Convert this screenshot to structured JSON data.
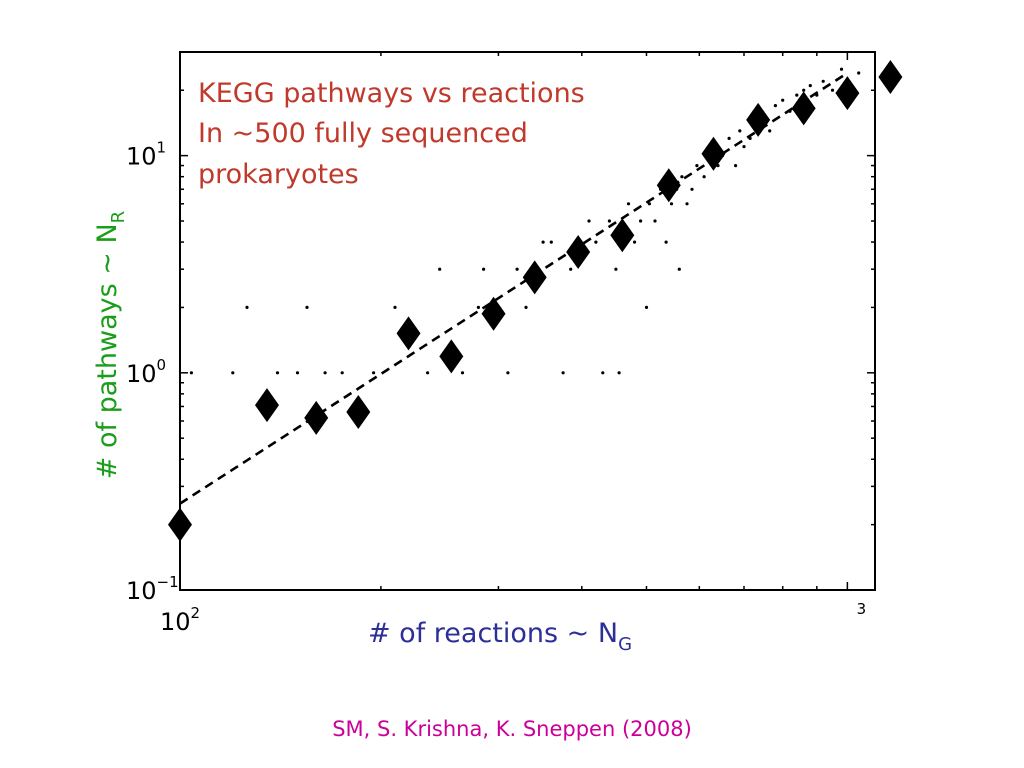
{
  "chart_data": {
    "type": "scatter",
    "title_lines": [
      "KEGG pathways vs reactions",
      "In ~500 fully sequenced",
      "prokaryotes"
    ],
    "xlabel": {
      "main": "# of reactions ~ N",
      "sub": "G"
    },
    "ylabel": {
      "main": "# of pathways ~ N",
      "sub": "R"
    },
    "x_scale": "log",
    "y_scale": "log",
    "xlim": [
      100,
      1100
    ],
    "ylim": [
      0.1,
      30
    ],
    "x_ticks": [
      {
        "value": 100,
        "base": "10",
        "exp": "2"
      },
      {
        "value": 1000,
        "base": "",
        "exp": "3"
      }
    ],
    "y_ticks": [
      {
        "value": 0.1,
        "base": "10",
        "exp": "−1"
      },
      {
        "value": 1,
        "base": "10",
        "exp": "0"
      },
      {
        "value": 10,
        "base": "10",
        "exp": "1"
      }
    ],
    "grid": false,
    "series": [
      {
        "marker": "diamond",
        "x": [
          100,
          135,
          160,
          185,
          220,
          255,
          295,
          340,
          395,
          460,
          540,
          630,
          735,
          860,
          1000,
          1160
        ],
        "y": [
          0.2,
          0.71,
          0.62,
          0.66,
          1.52,
          1.19,
          1.87,
          2.75,
          3.6,
          4.3,
          7.3,
          10.2,
          14.6,
          16.5,
          19.4,
          23.0
        ]
      },
      {
        "marker": "dot",
        "x": [
          104,
          120,
          126,
          140,
          150,
          155,
          165,
          175,
          195,
          210,
          235,
          245,
          265,
          280,
          285,
          300,
          310,
          320,
          330,
          345,
          350,
          360,
          375,
          385,
          410,
          420,
          430,
          440,
          450,
          455,
          470,
          480,
          490,
          500,
          505,
          515,
          525,
          535,
          545,
          555,
          560,
          565,
          575,
          585,
          595,
          610,
          625,
          640,
          650,
          665,
          680,
          690,
          700,
          715,
          725,
          740,
          750,
          765,
          780,
          800,
          820,
          840,
          860,
          880,
          900,
          920,
          950,
          980,
          1040
        ],
        "y": [
          1,
          1,
          2,
          1,
          1,
          2,
          1,
          1,
          1,
          2,
          1,
          3,
          1,
          2,
          3,
          2,
          1,
          3,
          2,
          3,
          4,
          4,
          1,
          3,
          5,
          4,
          1,
          5,
          3,
          1,
          6,
          4,
          5,
          2,
          6,
          5,
          7,
          4,
          6,
          7,
          3,
          8,
          6,
          7,
          9,
          8,
          11,
          9,
          10,
          12,
          9,
          13,
          11,
          12,
          16,
          14,
          15,
          13,
          17,
          18,
          16,
          19,
          20,
          21,
          19,
          22,
          20,
          25,
          24
        ]
      }
    ],
    "fit_line": {
      "style": "dashed",
      "x": [
        100,
        1000
      ],
      "y": [
        0.25,
        24
      ]
    }
  },
  "credit": "SM, S. Krishna, K. Sneppen (2008)",
  "colors": {
    "title": "#c0392b",
    "ylabel": "#1a9e1a",
    "xlabel": "#2e2e99",
    "credit": "#cc0099",
    "markers": "#000000"
  }
}
